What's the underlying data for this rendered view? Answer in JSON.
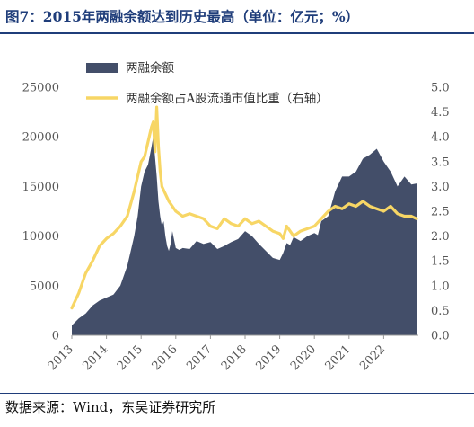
{
  "title": "图7：2015年两融余额达到历史最高（单位：亿元；%）",
  "source": "数据来源：Wind，东吴证券研究所",
  "colors": {
    "area": "#434e69",
    "line": "#f7d665",
    "title": "#1f3d7a"
  },
  "chart_data": {
    "type": "area+line",
    "legend_placement": "top-left",
    "grid": false,
    "x_ticks": [
      "2013",
      "2014",
      "2015",
      "2016",
      "2017",
      "2018",
      "2019",
      "2020",
      "2021",
      "2022"
    ],
    "x_range": [
      2013.0,
      2023.0
    ],
    "y_left": {
      "ticks": [
        "0",
        "5000",
        "10000",
        "15000",
        "20000",
        "25000"
      ],
      "range": [
        0,
        25000
      ]
    },
    "y_right": {
      "ticks": [
        "0.0",
        "0.5",
        "1.0",
        "1.5",
        "2.0",
        "2.5",
        "3.0",
        "3.5",
        "4.0",
        "4.5",
        "5.0"
      ],
      "range": [
        0,
        5.0
      ]
    },
    "series": [
      {
        "name": "两融余额",
        "kind": "area",
        "axis": "left",
        "x": [
          2013.0,
          2013.2,
          2013.4,
          2013.6,
          2013.8,
          2014.0,
          2014.2,
          2014.4,
          2014.6,
          2014.8,
          2014.9,
          2015.0,
          2015.1,
          2015.2,
          2015.3,
          2015.35,
          2015.4,
          2015.45,
          2015.5,
          2015.55,
          2015.6,
          2015.65,
          2015.7,
          2015.75,
          2015.8,
          2015.85,
          2015.9,
          2016.0,
          2016.1,
          2016.2,
          2016.4,
          2016.6,
          2016.8,
          2017.0,
          2017.2,
          2017.4,
          2017.6,
          2017.8,
          2018.0,
          2018.2,
          2018.4,
          2018.6,
          2018.8,
          2019.0,
          2019.1,
          2019.2,
          2019.3,
          2019.4,
          2019.6,
          2019.8,
          2020.0,
          2020.1,
          2020.2,
          2020.4,
          2020.6,
          2020.8,
          2021.0,
          2021.2,
          2021.4,
          2021.6,
          2021.8,
          2022.0,
          2022.2,
          2022.4,
          2022.6,
          2022.8,
          2022.95
        ],
        "values": [
          1000,
          1700,
          2200,
          3000,
          3500,
          3800,
          4100,
          5000,
          7000,
          10000,
          12000,
          15000,
          16500,
          17200,
          19000,
          20000,
          18000,
          16000,
          13500,
          12000,
          11000,
          11500,
          10000,
          9000,
          8500,
          9200,
          10500,
          8800,
          8600,
          8800,
          8700,
          9500,
          9200,
          9400,
          8700,
          9000,
          9400,
          9700,
          10500,
          10000,
          9200,
          8500,
          7800,
          7600,
          8300,
          9300,
          9100,
          9900,
          9500,
          10000,
          10300,
          10100,
          11500,
          12000,
          14500,
          16000,
          16000,
          16500,
          17800,
          18200,
          18800,
          17500,
          16500,
          15000,
          16000,
          15200,
          15300
        ]
      },
      {
        "name": "两融余额占A股流通市值比重（右轴）",
        "kind": "line",
        "axis": "right",
        "x": [
          2013.0,
          2013.2,
          2013.4,
          2013.6,
          2013.8,
          2014.0,
          2014.2,
          2014.4,
          2014.6,
          2014.8,
          2014.9,
          2015.0,
          2015.1,
          2015.2,
          2015.3,
          2015.35,
          2015.4,
          2015.45,
          2015.5,
          2015.55,
          2015.6,
          2015.7,
          2015.8,
          2016.0,
          2016.2,
          2016.4,
          2016.6,
          2016.8,
          2017.0,
          2017.2,
          2017.4,
          2017.6,
          2017.8,
          2018.0,
          2018.2,
          2018.4,
          2018.6,
          2018.8,
          2019.0,
          2019.1,
          2019.2,
          2019.4,
          2019.6,
          2019.8,
          2020.0,
          2020.2,
          2020.4,
          2020.6,
          2020.8,
          2021.0,
          2021.2,
          2021.4,
          2021.6,
          2021.8,
          2022.0,
          2022.2,
          2022.4,
          2022.6,
          2022.8,
          2022.95
        ],
        "values": [
          0.55,
          0.85,
          1.25,
          1.5,
          1.8,
          1.95,
          2.05,
          2.2,
          2.4,
          2.9,
          3.2,
          3.5,
          3.6,
          3.9,
          4.2,
          4.3,
          3.7,
          4.6,
          3.8,
          3.3,
          3.0,
          2.85,
          2.7,
          2.5,
          2.4,
          2.45,
          2.4,
          2.35,
          2.2,
          2.15,
          2.35,
          2.25,
          2.2,
          2.35,
          2.25,
          2.3,
          2.2,
          2.1,
          2.05,
          1.95,
          2.2,
          2.0,
          2.1,
          2.15,
          2.2,
          2.35,
          2.5,
          2.6,
          2.55,
          2.65,
          2.6,
          2.7,
          2.6,
          2.55,
          2.5,
          2.6,
          2.45,
          2.4,
          2.4,
          2.35
        ]
      }
    ]
  }
}
